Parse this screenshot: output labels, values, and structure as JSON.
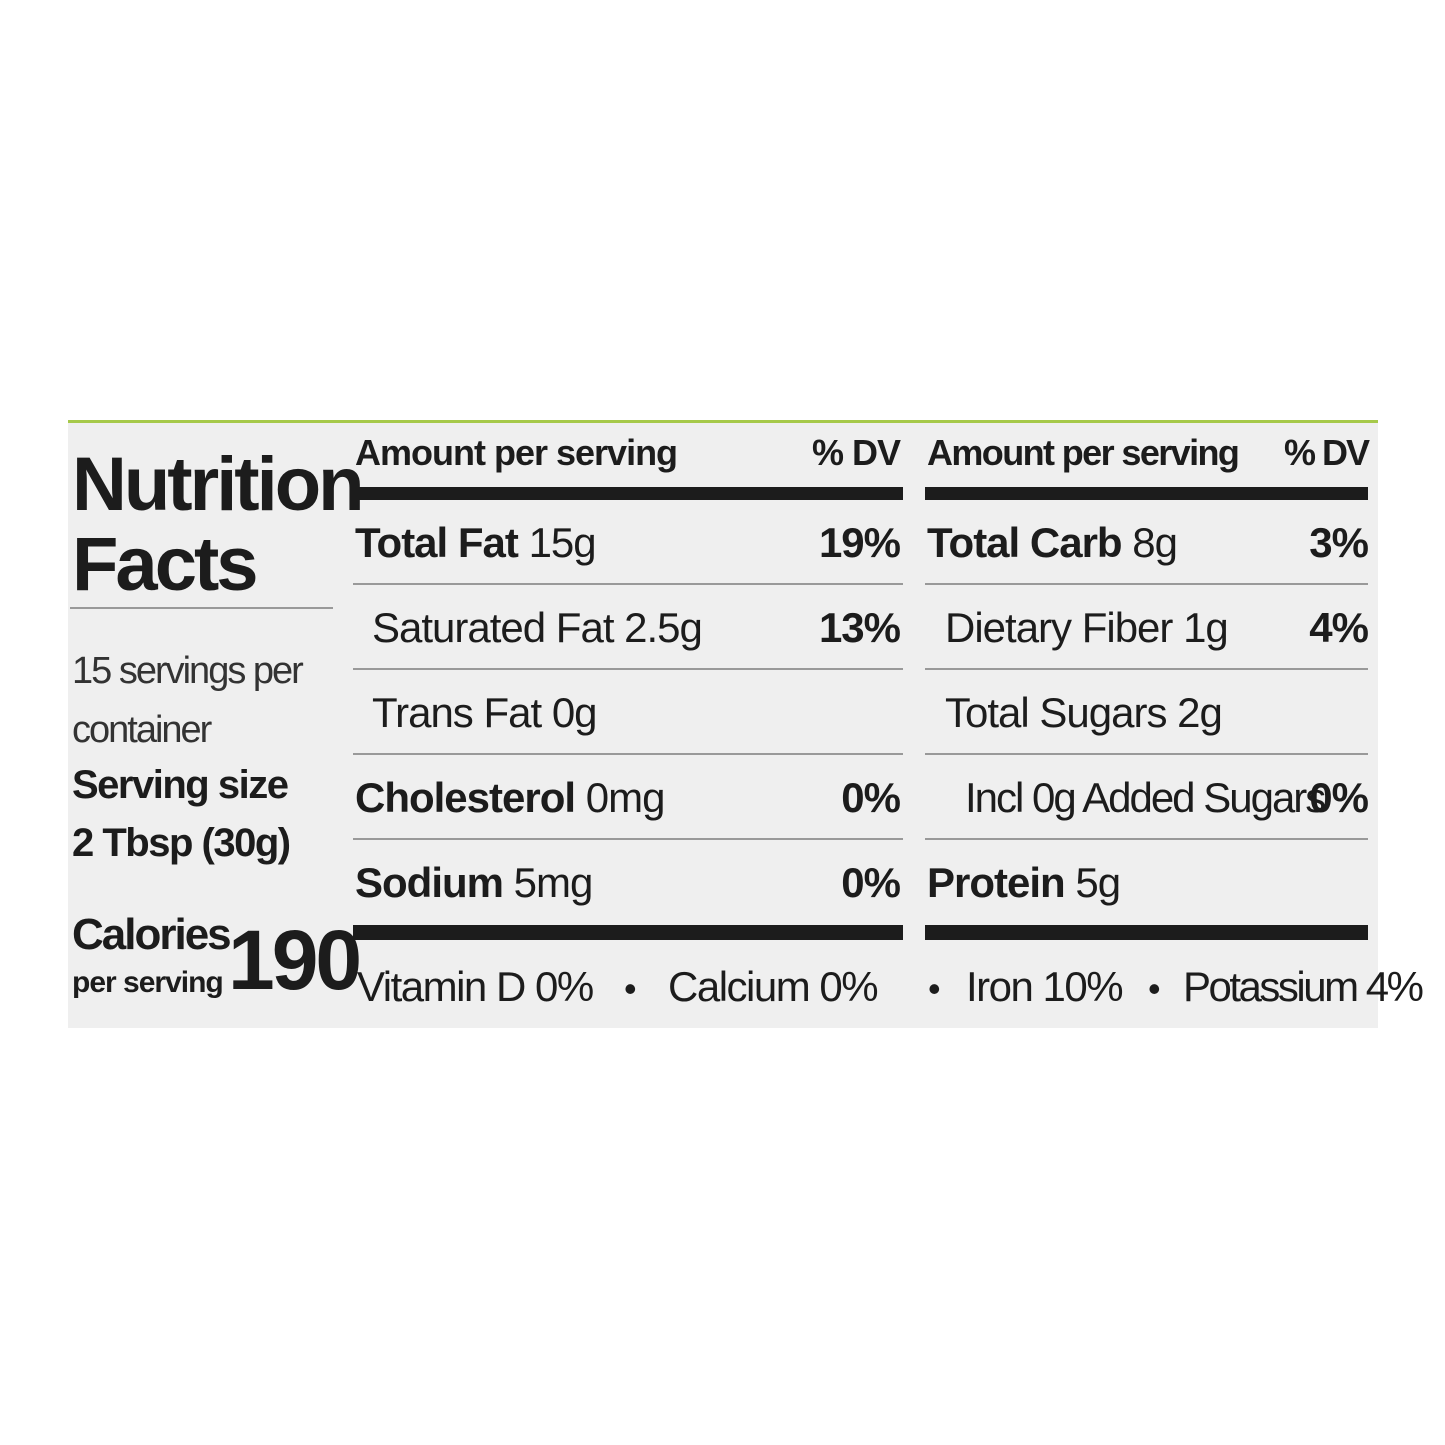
{
  "label": {
    "title": "Nutrition Facts",
    "servings_per_container": "15 servings per container",
    "serving_size_label": "Serving size",
    "serving_size": "2 Tbsp (30g)",
    "calories_label": "Calories",
    "calories_sub": "per serving",
    "calories": "190",
    "columns": [
      {
        "header_amount": "Amount per serving",
        "header_dv": "% DV",
        "rows": [
          {
            "name": "Total Fat",
            "amount": "15g",
            "dv": "19%"
          },
          {
            "name": "Saturated Fat",
            "amount": "2.5g",
            "dv": "13%"
          },
          {
            "name": "Trans Fat",
            "amount": "0g"
          },
          {
            "name": "Cholesterol",
            "amount": "0mg",
            "dv": "0%"
          },
          {
            "name": "Sodium",
            "amount": "5mg",
            "dv": "0%"
          }
        ]
      },
      {
        "header_amount": "Amount per serving",
        "header_dv": "% DV",
        "rows": [
          {
            "name": "Total Carb",
            "amount": "8g",
            "dv": "3%"
          },
          {
            "name": "Dietary Fiber",
            "amount": "1g",
            "dv": "4%"
          },
          {
            "name": "Total Sugars",
            "amount": "2g"
          },
          {
            "name": "Incl 0g Added Sugars",
            "dv": "0%"
          },
          {
            "name": "Protein",
            "amount": "5g"
          }
        ]
      }
    ],
    "footer": [
      "Vitamin D 0%",
      "Calcium 0%",
      "Iron 10%",
      "Potassium 4%"
    ]
  }
}
